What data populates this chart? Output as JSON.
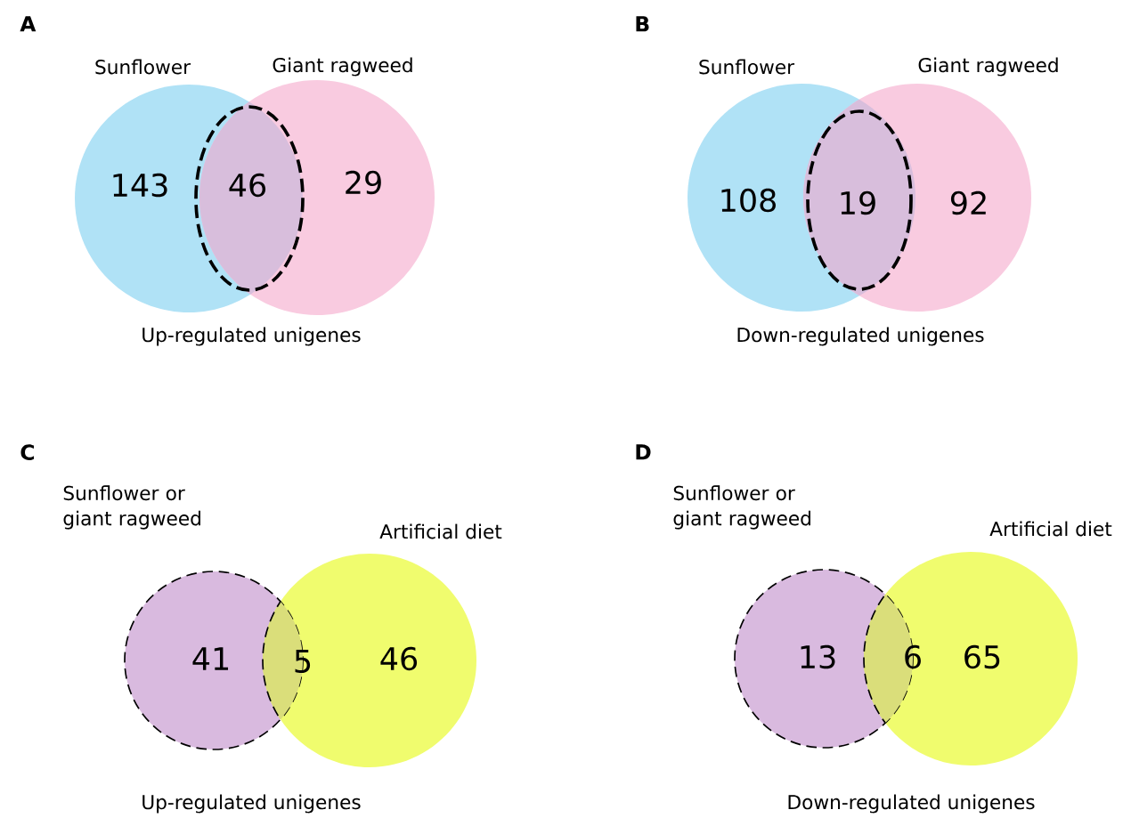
{
  "chart_data": [
    {
      "type": "other",
      "title": "A",
      "xlabel": "Up-regulated unigenes",
      "annotations": [
        "Sunflower",
        "Giant ragweed"
      ],
      "categories": [
        null,
        null,
        null
      ],
      "values": [
        143,
        46,
        29
      ],
      "colors": [
        "#b0e2f6",
        "#d8bedc",
        "#f9cbe0"
      ],
      "data_labels": true
    },
    {
      "type": "other",
      "title": "B",
      "xlabel": "Down-regulated unigenes",
      "annotations": [
        "Sunflower",
        "Giant ragweed"
      ],
      "categories": [
        null,
        null,
        null
      ],
      "values": [
        108,
        19,
        92
      ],
      "colors": [
        "#b0e2f6",
        "#d8bedc",
        "#f9cbe0"
      ],
      "data_labels": true
    },
    {
      "type": "other",
      "title": "C",
      "xlabel": "Up-regulated unigenes",
      "annotations": [
        "Sunflower or giant ragweed",
        "Artificial diet"
      ],
      "categories": [
        null,
        null,
        null
      ],
      "values": [
        41,
        5,
        46
      ],
      "colors": [
        "#d9badf",
        "#dade7a",
        "#f0fc6e"
      ],
      "data_labels": true
    },
    {
      "type": "other",
      "title": "D",
      "xlabel": "Down-regulated unigenes",
      "annotations": [
        "Sunflower or giant ragweed",
        "Artificial diet"
      ],
      "categories": [
        null,
        null,
        null
      ],
      "values": [
        13,
        6,
        65
      ],
      "colors": [
        "#d9badf",
        "#dade7a",
        "#f0fc6e"
      ],
      "data_labels": true
    }
  ]
}
